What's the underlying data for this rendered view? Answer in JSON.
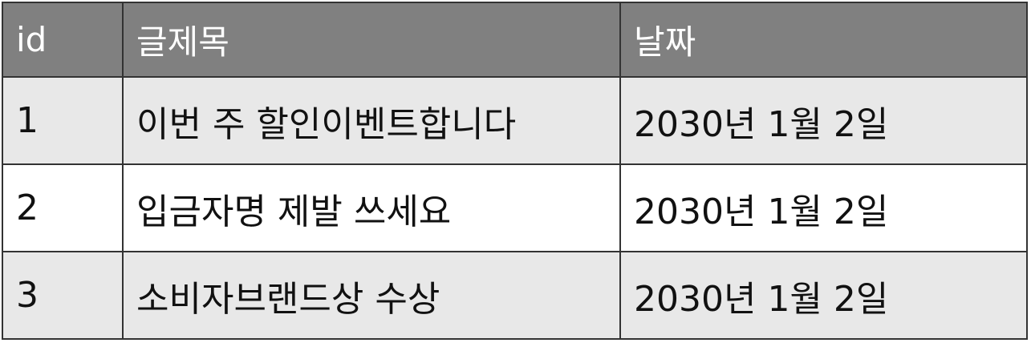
{
  "table": {
    "headers": [
      "id",
      "글제목",
      "날짜"
    ],
    "rows": [
      {
        "id": "1",
        "title": "이번 주 할인이벤트합니다",
        "date": "2030년 1월 2일"
      },
      {
        "id": "2",
        "title": "입금자명 제발 쓰세요",
        "date": "2030년 1월 2일"
      },
      {
        "id": "3",
        "title": "소비자브랜드상 수상",
        "date": "2030년 1월 2일"
      }
    ]
  },
  "colors": {
    "header_bg": "#808080",
    "header_text": "#ffffff",
    "row_odd_bg": "#e8e8e8",
    "row_even_bg": "#ffffff",
    "border": "#333333"
  }
}
